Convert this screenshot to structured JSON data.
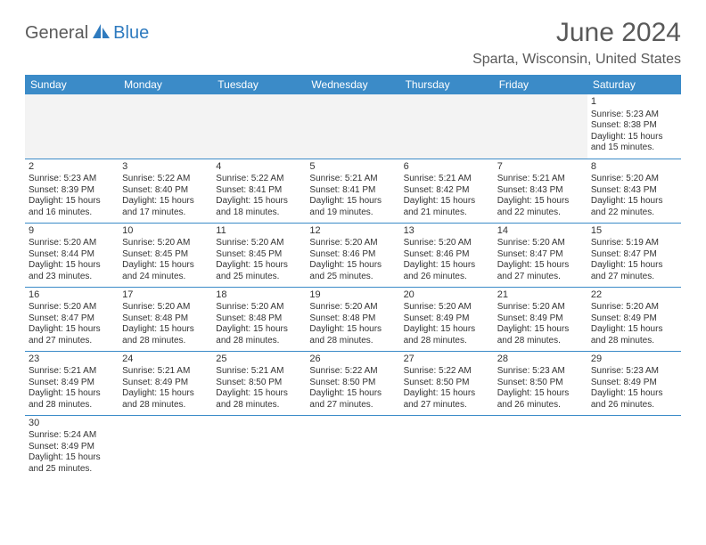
{
  "brand": {
    "text_general": "General",
    "text_blue": "Blue",
    "icon_color": "#2f7bbf",
    "general_color": "#5a5a5a",
    "blue_color": "#2f7bbf"
  },
  "header": {
    "month_title": "June 2024",
    "location": "Sparta, Wisconsin, United States",
    "title_color": "#595959"
  },
  "calendar": {
    "header_bg": "#3b8bc8",
    "header_fg": "#ffffff",
    "border_color": "#3b8bc8",
    "empty_bg": "#f3f3f3",
    "day_names": [
      "Sunday",
      "Monday",
      "Tuesday",
      "Wednesday",
      "Thursday",
      "Friday",
      "Saturday"
    ],
    "weeks": [
      [
        null,
        null,
        null,
        null,
        null,
        null,
        {
          "n": "1",
          "sunrise": "Sunrise: 5:23 AM",
          "sunset": "Sunset: 8:38 PM",
          "dl1": "Daylight: 15 hours",
          "dl2": "and 15 minutes."
        }
      ],
      [
        {
          "n": "2",
          "sunrise": "Sunrise: 5:23 AM",
          "sunset": "Sunset: 8:39 PM",
          "dl1": "Daylight: 15 hours",
          "dl2": "and 16 minutes."
        },
        {
          "n": "3",
          "sunrise": "Sunrise: 5:22 AM",
          "sunset": "Sunset: 8:40 PM",
          "dl1": "Daylight: 15 hours",
          "dl2": "and 17 minutes."
        },
        {
          "n": "4",
          "sunrise": "Sunrise: 5:22 AM",
          "sunset": "Sunset: 8:41 PM",
          "dl1": "Daylight: 15 hours",
          "dl2": "and 18 minutes."
        },
        {
          "n": "5",
          "sunrise": "Sunrise: 5:21 AM",
          "sunset": "Sunset: 8:41 PM",
          "dl1": "Daylight: 15 hours",
          "dl2": "and 19 minutes."
        },
        {
          "n": "6",
          "sunrise": "Sunrise: 5:21 AM",
          "sunset": "Sunset: 8:42 PM",
          "dl1": "Daylight: 15 hours",
          "dl2": "and 21 minutes."
        },
        {
          "n": "7",
          "sunrise": "Sunrise: 5:21 AM",
          "sunset": "Sunset: 8:43 PM",
          "dl1": "Daylight: 15 hours",
          "dl2": "and 22 minutes."
        },
        {
          "n": "8",
          "sunrise": "Sunrise: 5:20 AM",
          "sunset": "Sunset: 8:43 PM",
          "dl1": "Daylight: 15 hours",
          "dl2": "and 22 minutes."
        }
      ],
      [
        {
          "n": "9",
          "sunrise": "Sunrise: 5:20 AM",
          "sunset": "Sunset: 8:44 PM",
          "dl1": "Daylight: 15 hours",
          "dl2": "and 23 minutes."
        },
        {
          "n": "10",
          "sunrise": "Sunrise: 5:20 AM",
          "sunset": "Sunset: 8:45 PM",
          "dl1": "Daylight: 15 hours",
          "dl2": "and 24 minutes."
        },
        {
          "n": "11",
          "sunrise": "Sunrise: 5:20 AM",
          "sunset": "Sunset: 8:45 PM",
          "dl1": "Daylight: 15 hours",
          "dl2": "and 25 minutes."
        },
        {
          "n": "12",
          "sunrise": "Sunrise: 5:20 AM",
          "sunset": "Sunset: 8:46 PM",
          "dl1": "Daylight: 15 hours",
          "dl2": "and 25 minutes."
        },
        {
          "n": "13",
          "sunrise": "Sunrise: 5:20 AM",
          "sunset": "Sunset: 8:46 PM",
          "dl1": "Daylight: 15 hours",
          "dl2": "and 26 minutes."
        },
        {
          "n": "14",
          "sunrise": "Sunrise: 5:20 AM",
          "sunset": "Sunset: 8:47 PM",
          "dl1": "Daylight: 15 hours",
          "dl2": "and 27 minutes."
        },
        {
          "n": "15",
          "sunrise": "Sunrise: 5:19 AM",
          "sunset": "Sunset: 8:47 PM",
          "dl1": "Daylight: 15 hours",
          "dl2": "and 27 minutes."
        }
      ],
      [
        {
          "n": "16",
          "sunrise": "Sunrise: 5:20 AM",
          "sunset": "Sunset: 8:47 PM",
          "dl1": "Daylight: 15 hours",
          "dl2": "and 27 minutes."
        },
        {
          "n": "17",
          "sunrise": "Sunrise: 5:20 AM",
          "sunset": "Sunset: 8:48 PM",
          "dl1": "Daylight: 15 hours",
          "dl2": "and 28 minutes."
        },
        {
          "n": "18",
          "sunrise": "Sunrise: 5:20 AM",
          "sunset": "Sunset: 8:48 PM",
          "dl1": "Daylight: 15 hours",
          "dl2": "and 28 minutes."
        },
        {
          "n": "19",
          "sunrise": "Sunrise: 5:20 AM",
          "sunset": "Sunset: 8:48 PM",
          "dl1": "Daylight: 15 hours",
          "dl2": "and 28 minutes."
        },
        {
          "n": "20",
          "sunrise": "Sunrise: 5:20 AM",
          "sunset": "Sunset: 8:49 PM",
          "dl1": "Daylight: 15 hours",
          "dl2": "and 28 minutes."
        },
        {
          "n": "21",
          "sunrise": "Sunrise: 5:20 AM",
          "sunset": "Sunset: 8:49 PM",
          "dl1": "Daylight: 15 hours",
          "dl2": "and 28 minutes."
        },
        {
          "n": "22",
          "sunrise": "Sunrise: 5:20 AM",
          "sunset": "Sunset: 8:49 PM",
          "dl1": "Daylight: 15 hours",
          "dl2": "and 28 minutes."
        }
      ],
      [
        {
          "n": "23",
          "sunrise": "Sunrise: 5:21 AM",
          "sunset": "Sunset: 8:49 PM",
          "dl1": "Daylight: 15 hours",
          "dl2": "and 28 minutes."
        },
        {
          "n": "24",
          "sunrise": "Sunrise: 5:21 AM",
          "sunset": "Sunset: 8:49 PM",
          "dl1": "Daylight: 15 hours",
          "dl2": "and 28 minutes."
        },
        {
          "n": "25",
          "sunrise": "Sunrise: 5:21 AM",
          "sunset": "Sunset: 8:50 PM",
          "dl1": "Daylight: 15 hours",
          "dl2": "and 28 minutes."
        },
        {
          "n": "26",
          "sunrise": "Sunrise: 5:22 AM",
          "sunset": "Sunset: 8:50 PM",
          "dl1": "Daylight: 15 hours",
          "dl2": "and 27 minutes."
        },
        {
          "n": "27",
          "sunrise": "Sunrise: 5:22 AM",
          "sunset": "Sunset: 8:50 PM",
          "dl1": "Daylight: 15 hours",
          "dl2": "and 27 minutes."
        },
        {
          "n": "28",
          "sunrise": "Sunrise: 5:23 AM",
          "sunset": "Sunset: 8:50 PM",
          "dl1": "Daylight: 15 hours",
          "dl2": "and 26 minutes."
        },
        {
          "n": "29",
          "sunrise": "Sunrise: 5:23 AM",
          "sunset": "Sunset: 8:49 PM",
          "dl1": "Daylight: 15 hours",
          "dl2": "and 26 minutes."
        }
      ],
      [
        {
          "n": "30",
          "sunrise": "Sunrise: 5:24 AM",
          "sunset": "Sunset: 8:49 PM",
          "dl1": "Daylight: 15 hours",
          "dl2": "and 25 minutes."
        },
        null,
        null,
        null,
        null,
        null,
        null
      ]
    ]
  }
}
